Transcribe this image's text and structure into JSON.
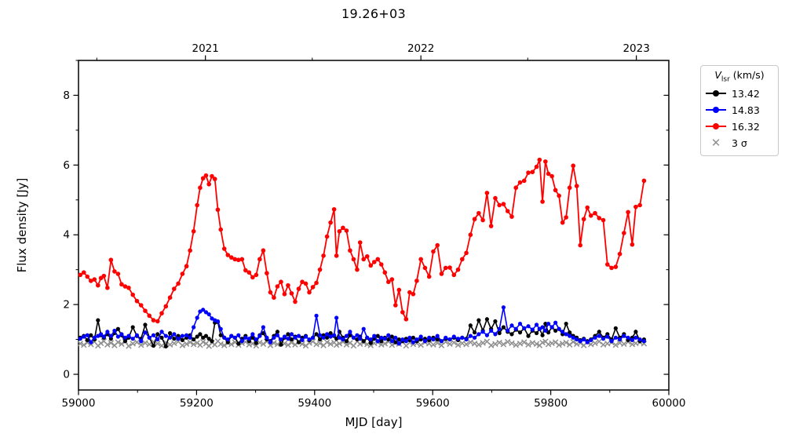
{
  "chart_data": {
    "type": "line",
    "title": "19.26+03",
    "xlabel": "MJD [day]",
    "ylabel": "Flux density [Jy]",
    "xlim": [
      59000,
      60000
    ],
    "ylim": [
      -0.45,
      9.0
    ],
    "grid": false,
    "legend_position": "outside upper right",
    "legend_title": {
      "symbol": "V",
      "subscript": "lsr",
      "suffix": " (km/s)"
    },
    "x_ticks_major": [
      59000,
      59200,
      59400,
      59600,
      59800,
      60000
    ],
    "x_ticks_minor": [
      59100,
      59300,
      59500,
      59700,
      59900
    ],
    "y_ticks_major": [
      0,
      2,
      4,
      6,
      8
    ],
    "y_ticks_minor": [
      1,
      3,
      5,
      7,
      9
    ],
    "top_axis": {
      "ticks": [
        {
          "mjd": 59215,
          "label": "2021"
        },
        {
          "mjd": 59580,
          "label": "2022"
        },
        {
          "mjd": 59945,
          "label": "2023"
        }
      ],
      "minor_mjd": [
        59031,
        59396,
        59761
      ]
    },
    "mjd": [
      59003,
      59009,
      59015,
      59021,
      59027,
      59033,
      59038,
      59043,
      59049,
      59055,
      59061,
      59067,
      59073,
      59079,
      59085,
      59092,
      59099,
      59106,
      59113,
      59120,
      59127,
      59134,
      59141,
      59148,
      59155,
      59162,
      59169,
      59176,
      59183,
      59189,
      59195,
      59201,
      59206,
      59211,
      59216,
      59221,
      59226,
      59231,
      59236,
      59241,
      59247,
      59253,
      59259,
      59265,
      59271,
      59277,
      59283,
      59289,
      59295,
      59301,
      59307,
      59313,
      59319,
      59325,
      59331,
      59337,
      59343,
      59349,
      59355,
      59361,
      59367,
      59373,
      59379,
      59385,
      59391,
      59397,
      59403,
      59409,
      59415,
      59421,
      59427,
      59433,
      59437,
      59442,
      59448,
      59454,
      59460,
      59466,
      59472,
      59477,
      59483,
      59489,
      59495,
      59501,
      59507,
      59513,
      59519,
      59525,
      59531,
      59537,
      59543,
      59549,
      59555,
      59561,
      59567,
      59573,
      59580,
      59587,
      59594,
      59601,
      59608,
      59615,
      59622,
      59629,
      59636,
      59643,
      59650,
      59657,
      59664,
      59671,
      59678,
      59685,
      59692,
      59699,
      59706,
      59713,
      59720,
      59727,
      59734,
      59741,
      59748,
      59755,
      59762,
      59769,
      59776,
      59781,
      59786,
      59791,
      59796,
      59802,
      59808,
      59814,
      59820,
      59826,
      59832,
      59838,
      59844,
      59850,
      59856,
      59862,
      59868,
      59875,
      59882,
      59889,
      59896,
      59903,
      59910,
      59917,
      59924,
      59931,
      59938,
      59944,
      59951,
      59958
    ],
    "series": [
      {
        "name": "13.42",
        "color": "#000000",
        "marker": "dot",
        "line": true,
        "marker_r": 2.6,
        "line_w": 1.6,
        "values": [
          1.05,
          1.1,
          0.98,
          1.12,
          1.0,
          1.55,
          1.12,
          1.05,
          1.15,
          1.02,
          1.18,
          1.3,
          1.12,
          0.95,
          1.05,
          1.35,
          1.1,
          1.02,
          1.42,
          1.05,
          0.82,
          1.15,
          1.05,
          0.8,
          1.18,
          1.02,
          1.1,
          0.98,
          1.05,
          1.12,
          1.0,
          1.08,
          1.15,
          1.05,
          1.1,
          1.02,
          0.95,
          1.48,
          1.5,
          1.12,
          1.05,
          0.92,
          1.1,
          1.05,
          0.88,
          1.02,
          1.1,
          0.95,
          1.05,
          0.9,
          1.12,
          1.18,
          1.0,
          0.95,
          1.1,
          1.22,
          0.85,
          1.05,
          1.15,
          1.0,
          1.08,
          0.92,
          1.05,
          1.1,
          0.98,
          1.05,
          1.15,
          1.0,
          1.12,
          1.05,
          1.18,
          1.1,
          1.02,
          1.22,
          1.05,
          0.95,
          1.12,
          1.05,
          1.0,
          1.08,
          0.95,
          1.05,
          0.9,
          1.02,
          1.1,
          0.95,
          1.05,
          1.0,
          1.08,
          0.92,
          1.0,
          0.95,
          1.02,
          0.98,
          1.05,
          0.95,
          1.0,
          1.02,
          0.98,
          1.05,
          1.0,
          0.95,
          1.02,
          1.0,
          1.05,
          0.98,
          1.05,
          1.02,
          1.4,
          1.2,
          1.55,
          1.25,
          1.58,
          1.3,
          1.52,
          1.18,
          1.35,
          1.22,
          1.15,
          1.28,
          1.2,
          1.32,
          1.1,
          1.25,
          1.18,
          1.3,
          1.12,
          1.45,
          1.2,
          1.35,
          1.25,
          1.3,
          1.15,
          1.45,
          1.2,
          1.1,
          1.05,
          0.98,
          1.02,
          0.95,
          1.0,
          1.1,
          1.22,
          1.05,
          1.15,
          1.0,
          1.32,
          1.05,
          1.15,
          0.98,
          1.05,
          1.22,
          0.95,
          1.0
        ]
      },
      {
        "name": "14.83",
        "color": "#0000ff",
        "marker": "dot",
        "line": true,
        "marker_r": 2.6,
        "line_w": 1.6,
        "values": [
          1.02,
          1.08,
          1.12,
          0.92,
          1.05,
          1.1,
          1.15,
          1.08,
          1.22,
          1.1,
          1.25,
          1.08,
          1.15,
          1.05,
          1.1,
          1.02,
          1.12,
          0.95,
          1.2,
          1.05,
          1.12,
          1.0,
          1.22,
          1.1,
          1.05,
          1.15,
          1.02,
          1.1,
          1.12,
          1.05,
          1.35,
          1.62,
          1.8,
          1.85,
          1.78,
          1.72,
          1.6,
          1.55,
          1.52,
          1.3,
          1.05,
          1.0,
          1.1,
          1.05,
          1.12,
          0.95,
          1.05,
          1.02,
          1.15,
          1.0,
          1.1,
          1.35,
          1.05,
          0.92,
          1.05,
          1.12,
          1.0,
          1.08,
          1.02,
          1.15,
          1.05,
          1.1,
          0.98,
          1.08,
          1.0,
          1.05,
          1.68,
          1.12,
          1.05,
          1.15,
          1.08,
          1.12,
          1.62,
          1.05,
          1.0,
          1.1,
          1.22,
          1.05,
          1.12,
          1.02,
          1.3,
          1.05,
          1.0,
          1.1,
          0.95,
          1.05,
          1.02,
          1.12,
          0.95,
          1.05,
          0.88,
          1.0,
          0.95,
          1.05,
          0.92,
          1.0,
          1.08,
          0.95,
          1.05,
          1.0,
          1.1,
          0.95,
          1.05,
          1.0,
          1.08,
          1.02,
          1.05,
          1.0,
          1.1,
          1.05,
          1.15,
          1.22,
          1.12,
          1.25,
          1.15,
          1.3,
          1.92,
          1.25,
          1.4,
          1.3,
          1.45,
          1.32,
          1.38,
          1.28,
          1.42,
          1.3,
          1.35,
          1.25,
          1.45,
          1.35,
          1.48,
          1.3,
          1.22,
          1.15,
          1.1,
          1.05,
          1.0,
          0.95,
          1.0,
          0.92,
          0.98,
          1.05,
          1.1,
          1.02,
          1.08,
          0.95,
          1.05,
          1.0,
          1.1,
          1.05,
          0.98,
          1.05,
          1.0,
          0.95
        ]
      },
      {
        "name": "16.32",
        "color": "#ff0000",
        "marker": "dot",
        "line": true,
        "marker_r": 2.8,
        "line_w": 1.8,
        "values": [
          2.85,
          2.92,
          2.8,
          2.68,
          2.72,
          2.55,
          2.76,
          2.82,
          2.48,
          3.28,
          2.95,
          2.88,
          2.58,
          2.52,
          2.48,
          2.28,
          2.1,
          1.98,
          1.82,
          1.68,
          1.55,
          1.52,
          1.75,
          1.95,
          2.2,
          2.45,
          2.6,
          2.88,
          3.1,
          3.55,
          4.1,
          4.85,
          5.35,
          5.62,
          5.7,
          5.45,
          5.68,
          5.6,
          4.72,
          4.15,
          3.6,
          3.42,
          3.35,
          3.3,
          3.28,
          3.3,
          2.98,
          2.92,
          2.78,
          2.85,
          3.3,
          3.55,
          2.9,
          2.35,
          2.2,
          2.52,
          2.65,
          2.3,
          2.55,
          2.32,
          2.08,
          2.45,
          2.65,
          2.6,
          2.35,
          2.5,
          2.62,
          3.0,
          3.4,
          3.95,
          4.35,
          4.73,
          3.4,
          4.1,
          4.2,
          4.12,
          3.55,
          3.3,
          3.0,
          3.78,
          3.3,
          3.38,
          3.12,
          3.22,
          3.3,
          3.15,
          2.92,
          2.65,
          2.72,
          1.98,
          2.42,
          1.78,
          1.58,
          2.35,
          2.3,
          2.68,
          3.3,
          3.05,
          2.8,
          3.52,
          3.7,
          2.88,
          3.05,
          3.06,
          2.85,
          3.0,
          3.3,
          3.48,
          4.0,
          4.45,
          4.62,
          4.42,
          5.2,
          4.25,
          5.05,
          4.85,
          4.88,
          4.68,
          4.52,
          5.35,
          5.5,
          5.55,
          5.78,
          5.8,
          5.95,
          6.15,
          4.95,
          6.1,
          5.75,
          5.68,
          5.28,
          5.12,
          4.35,
          4.5,
          5.35,
          5.98,
          5.4,
          3.7,
          4.45,
          4.78,
          4.55,
          4.62,
          4.48,
          4.42,
          3.15,
          3.05,
          3.08,
          3.45,
          4.05,
          4.65,
          3.72,
          4.8,
          4.85,
          5.55
        ]
      },
      {
        "name": "3 σ",
        "color": "#8f8f8f",
        "marker": "x",
        "line": false,
        "marker_r": 3.2,
        "line_w": 1.5,
        "values": [
          0.88,
          0.84,
          0.91,
          0.86,
          0.93,
          0.82,
          0.89,
          0.95,
          0.85,
          0.9,
          0.83,
          0.92,
          0.87,
          0.94,
          0.81,
          0.88,
          0.92,
          0.84,
          0.9,
          0.86,
          0.93,
          0.88,
          0.82,
          0.91,
          0.85,
          0.89,
          0.94,
          0.83,
          0.87,
          0.92,
          0.86,
          0.9,
          0.84,
          0.93,
          0.88,
          0.81,
          0.91,
          0.85,
          0.95,
          0.87,
          0.83,
          0.9,
          0.86,
          0.92,
          0.84,
          0.89,
          0.93,
          0.85,
          0.88,
          0.82,
          0.91,
          0.87,
          0.94,
          0.83,
          0.9,
          0.86,
          0.92,
          0.88,
          0.84,
          0.91,
          0.85,
          0.93,
          0.87,
          0.82,
          0.9,
          0.94,
          0.86,
          0.89,
          0.83,
          0.92,
          0.87,
          0.91,
          0.84,
          0.88,
          0.93,
          0.85,
          0.9,
          0.82,
          0.94,
          0.87,
          0.91,
          0.86,
          0.83,
          0.89,
          0.92,
          0.85,
          0.88,
          0.94,
          0.84,
          0.9,
          0.87,
          0.93,
          0.82,
          0.91,
          0.86,
          0.89,
          0.84,
          0.92,
          0.88,
          0.85,
          0.9,
          0.83,
          0.93,
          0.87,
          0.91,
          0.84,
          0.89,
          0.86,
          0.92,
          0.88,
          0.85,
          0.9,
          0.94,
          0.83,
          0.87,
          0.91,
          0.86,
          0.93,
          0.89,
          0.84,
          0.88,
          0.92,
          0.85,
          0.9,
          0.87,
          0.83,
          0.91,
          0.94,
          0.86,
          0.89,
          0.92,
          0.84,
          0.88,
          0.91,
          0.85,
          0.93,
          0.87,
          0.9,
          0.83,
          0.92,
          0.86,
          0.89,
          0.94,
          0.85,
          0.88,
          0.91,
          0.84,
          0.9,
          0.87,
          0.93,
          0.86,
          0.89,
          0.92,
          0.88
        ]
      }
    ],
    "draw_order": [
      3,
      0,
      1,
      2
    ]
  }
}
